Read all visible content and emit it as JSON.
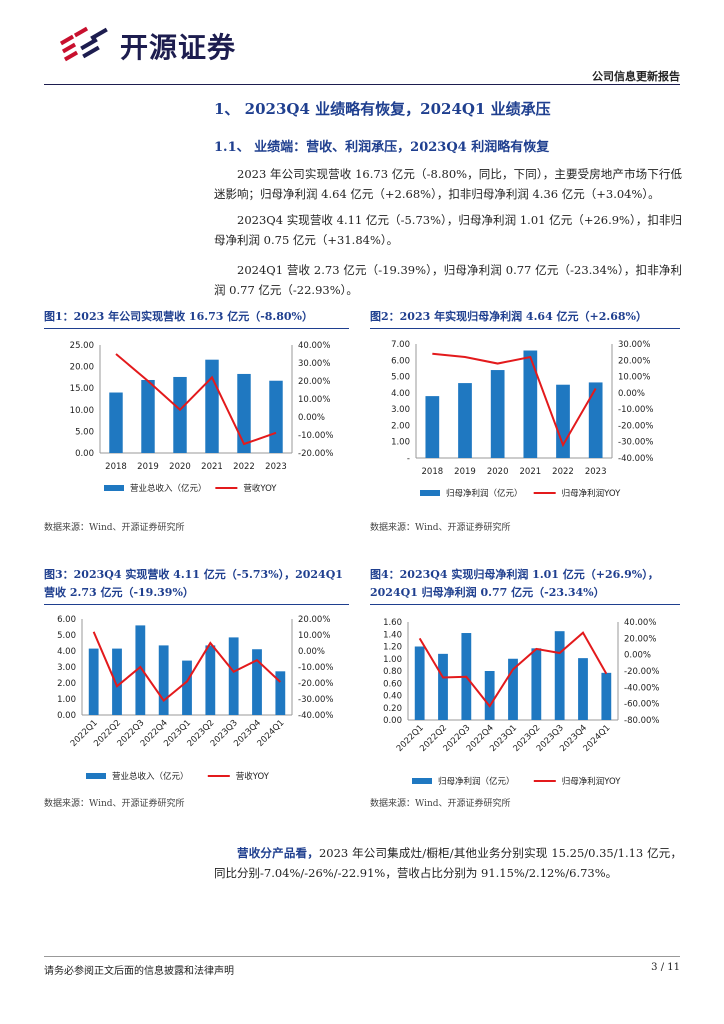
{
  "header": {
    "company": "开源证券",
    "doc_type": "公司信息更新报告"
  },
  "section": {
    "h1": "1、 2023Q4 业绩略有恢复，2024Q1 业绩承压",
    "h2": "1.1、 业绩端：营收、利润承压，2023Q4 利润略有恢复"
  },
  "paragraphs": [
    "2023 年公司实现营收 16.73 亿元（-8.80%，同比，下同），主要受房地产市场下行低迷影响；归母净利润 4.64 亿元（+2.68%），扣非归母净利润 4.36 亿元（+3.04%）。",
    "2023Q4 实现营收 4.11 亿元（-5.73%），归母净利润 1.01 亿元（+26.9%），扣非归母净利润 0.75 亿元（+31.84%）。",
    "2024Q1 营收 2.73 亿元（-19.39%），归母净利润 0.77 亿元（-23.34%），扣非净利润 0.77 亿元（-22.93%）。"
  ],
  "figures": [
    {
      "title": "图1：2023 年公司实现营收 16.73 亿元（-8.80%）",
      "source": "数据来源：Wind、开源证券研究所"
    },
    {
      "title": "图2：2023 年实现归母净利润 4.64 亿元（+2.68%）",
      "source": "数据来源：Wind、开源证券研究所"
    },
    {
      "title": "图3：2023Q4 实现营收 4.11 亿元（-5.73%），2024Q1 营收 2.73 亿元（-19.39%）",
      "source": "数据来源：Wind、开源证券研究所"
    },
    {
      "title": "图4：2023Q4 实现归母净利润 1.01 亿元（+26.9%），2024Q1 归母净利润 0.77 亿元（-23.34%）",
      "source": "数据来源：Wind、开源证券研究所"
    }
  ],
  "bottom": {
    "bold": "营收分产品看，",
    "text": "2023 年公司集成灶/橱柜/其他业务分别实现 15.25/0.35/1.13 亿元，同比分别-7.04%/-26%/-22.91%，营收占比分别为 91.15%/2.12%/6.73%。"
  },
  "footer": {
    "disclaimer": "请务必参阅正文后面的信息披露和法律声明",
    "page": "3 / 11"
  },
  "colors": {
    "bar": "#1f78c1",
    "line": "#e31a1c",
    "heading": "#1f3f8f"
  },
  "chart_data": [
    {
      "type": "bar+line",
      "title": "图1：2023 年公司实现营收 16.73 亿元（-8.80%）",
      "categories": [
        "2018",
        "2019",
        "2020",
        "2021",
        "2022",
        "2023"
      ],
      "series": [
        {
          "name": "营业总收入（亿元）",
          "axis": "left",
          "values": [
            14.0,
            16.9,
            17.6,
            21.6,
            18.3,
            16.73
          ]
        },
        {
          "name": "营收YOY",
          "axis": "right",
          "values": [
            35.0,
            20.0,
            4.0,
            22.0,
            -15.0,
            -8.8
          ]
        }
      ],
      "yleft": {
        "min": 0,
        "max": 25,
        "step": 5,
        "labels": [
          "0.00",
          "5.00",
          "10.00",
          "15.00",
          "20.00",
          "25.00"
        ]
      },
      "yright": {
        "min": -20,
        "max": 40,
        "step": 10,
        "labels": [
          "-20.00%",
          "-10.00%",
          "0.00%",
          "10.00%",
          "20.00%",
          "30.00%",
          "40.00%"
        ]
      },
      "legend": [
        "营业总收入（亿元）",
        "营收YOY"
      ]
    },
    {
      "type": "bar+line",
      "title": "图2：2023 年实现归母净利润 4.64 亿元（+2.68%）",
      "categories": [
        "2018",
        "2019",
        "2020",
        "2021",
        "2022",
        "2023"
      ],
      "series": [
        {
          "name": "归母净利润（亿元）",
          "axis": "left",
          "values": [
            3.8,
            4.6,
            5.4,
            6.6,
            4.5,
            4.64
          ]
        },
        {
          "name": "归母净利润YOY",
          "axis": "right",
          "values": [
            24.0,
            22.0,
            18.0,
            22.0,
            -32.0,
            2.68
          ]
        }
      ],
      "yleft": {
        "min": 0,
        "max": 7,
        "step": 1,
        "labels": [
          "-",
          "1.00",
          "2.00",
          "3.00",
          "4.00",
          "5.00",
          "6.00",
          "7.00"
        ]
      },
      "yright": {
        "min": -40,
        "max": 30,
        "step": 10,
        "labels": [
          "-40.00%",
          "-30.00%",
          "-20.00%",
          "-10.00%",
          "0.00%",
          "10.00%",
          "20.00%",
          "30.00%"
        ]
      },
      "legend": [
        "归母净利润（亿元）",
        "归母净利润YOY"
      ]
    },
    {
      "type": "bar+line",
      "title": "图3：2023Q4 实现营收 4.11 亿元（-5.73%），2024Q1 营收 2.73 亿元（-19.39%）",
      "categories": [
        "2022Q1",
        "2022Q2",
        "2022Q3",
        "2022Q4",
        "2023Q1",
        "2023Q2",
        "2023Q3",
        "2023Q4",
        "2024Q1"
      ],
      "series": [
        {
          "name": "营业总收入（亿元）",
          "axis": "left",
          "values": [
            4.15,
            4.15,
            5.6,
            4.35,
            3.4,
            4.35,
            4.85,
            4.11,
            2.73
          ]
        },
        {
          "name": "营收YOY",
          "axis": "right",
          "values": [
            12.0,
            -22.0,
            -10.0,
            -31.0,
            -19.0,
            5.0,
            -13.0,
            -5.73,
            -19.39
          ]
        }
      ],
      "yleft": {
        "min": 0,
        "max": 6,
        "step": 1,
        "labels": [
          "0.00",
          "1.00",
          "2.00",
          "3.00",
          "4.00",
          "5.00",
          "6.00"
        ]
      },
      "yright": {
        "min": -40,
        "max": 20,
        "step": 10,
        "labels": [
          "-40.00%",
          "-30.00%",
          "-20.00%",
          "-10.00%",
          "0.00%",
          "10.00%",
          "20.00%"
        ]
      },
      "legend": [
        "营业总收入（亿元）",
        "营收YOY"
      ]
    },
    {
      "type": "bar+line",
      "title": "图4：2023Q4 实现归母净利润 1.01 亿元（+26.9%），2024Q1 归母净利润 0.77 亿元（-23.34%）",
      "categories": [
        "2022Q1",
        "2022Q2",
        "2022Q3",
        "2022Q4",
        "2023Q1",
        "2023Q2",
        "2023Q3",
        "2023Q4",
        "2024Q1"
      ],
      "series": [
        {
          "name": "归母净利润（亿元）",
          "axis": "left",
          "values": [
            1.2,
            1.08,
            1.42,
            0.8,
            1.0,
            1.17,
            1.45,
            1.01,
            0.77
          ]
        },
        {
          "name": "归母净利润YOY",
          "axis": "right",
          "values": [
            20.0,
            -28.0,
            -27.0,
            -63.0,
            -18.0,
            7.0,
            2.0,
            26.9,
            -23.34
          ]
        }
      ],
      "yleft": {
        "min": 0,
        "max": 1.6,
        "step": 0.2,
        "labels": [
          "0.00",
          "0.20",
          "0.40",
          "0.60",
          "0.80",
          "1.00",
          "1.20",
          "1.40",
          "1.60"
        ]
      },
      "yright": {
        "min": -80,
        "max": 40,
        "step": 20,
        "labels": [
          "-80.00%",
          "-60.00%",
          "-40.00%",
          "-20.00%",
          "0.00%",
          "20.00%",
          "40.00%"
        ]
      },
      "legend": [
        "归母净利润（亿元）",
        "归母净利润YOY"
      ]
    }
  ]
}
